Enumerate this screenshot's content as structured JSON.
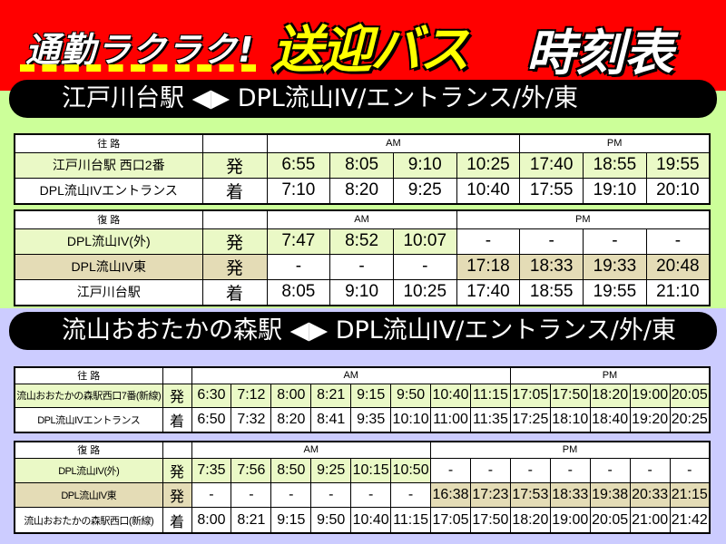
{
  "header": {
    "slogan": "通勤ラクラク!",
    "title_yellow": "送迎バス",
    "title_white": "時刻表"
  },
  "colors": {
    "header": "#ff0000",
    "section1_bg": "#ccff99",
    "section2_bg": "#ccccff",
    "highlight_green": "#eaf9c6",
    "highlight_tan": "#e4dcb6"
  },
  "route1": {
    "banner": "江戸川台駅 ◀▶ DPL流山IV/エントランス/外/東",
    "outbound": {
      "label": "往 路",
      "am": "AM",
      "pm": "PM",
      "rows": [
        {
          "stop": "江戸川台駅 西口2番",
          "dir": "発",
          "times": [
            "6:55",
            "8:05",
            "9:10",
            "10:25",
            "17:40",
            "18:55",
            "19:55"
          ]
        },
        {
          "stop": "DPL流山IVエントランス",
          "dir": "着",
          "times": [
            "7:10",
            "8:20",
            "9:25",
            "10:40",
            "17:55",
            "19:10",
            "20:10"
          ]
        }
      ]
    },
    "inbound": {
      "label": "復 路",
      "am": "AM",
      "pm": "PM",
      "rows": [
        {
          "stop": "DPL流山IV(外)",
          "dir": "発",
          "times": [
            "7:47",
            "8:52",
            "10:07",
            "-",
            "-",
            "-",
            "-"
          ]
        },
        {
          "stop": "DPL流山IV東",
          "dir": "発",
          "times": [
            "-",
            "-",
            "-",
            "17:18",
            "18:33",
            "19:33",
            "20:48"
          ]
        },
        {
          "stop": "江戸川台駅",
          "dir": "着",
          "times": [
            "8:05",
            "9:10",
            "10:25",
            "17:40",
            "18:55",
            "19:55",
            "21:10"
          ]
        }
      ]
    }
  },
  "route2": {
    "banner": "流山おおたかの森駅 ◀▶ DPL流山IV/エントランス/外/東",
    "outbound": {
      "label": "往 路",
      "am": "AM",
      "pm": "PM",
      "rows": [
        {
          "stop": "流山おおたかの森駅西口7番(新線)",
          "dir": "発",
          "times": [
            "6:30",
            "7:12",
            "8:00",
            "8:21",
            "9:15",
            "9:50",
            "10:40",
            "11:15",
            "17:05",
            "17:50",
            "18:20",
            "19:00",
            "20:05"
          ]
        },
        {
          "stop": "DPL流山IVエントランス",
          "dir": "着",
          "times": [
            "6:50",
            "7:32",
            "8:20",
            "8:41",
            "9:35",
            "10:10",
            "11:00",
            "11:35",
            "17:25",
            "18:10",
            "18:40",
            "19:20",
            "20:25"
          ]
        }
      ]
    },
    "inbound": {
      "label": "復 路",
      "am": "AM",
      "pm": "PM",
      "rows": [
        {
          "stop": "DPL流山IV(外)",
          "dir": "発",
          "times": [
            "7:35",
            "7:56",
            "8:50",
            "9:25",
            "10:15",
            "10:50",
            "-",
            "-",
            "-",
            "-",
            "-",
            "-",
            "-"
          ]
        },
        {
          "stop": "DPL流山IV東",
          "dir": "発",
          "times": [
            "-",
            "-",
            "-",
            "-",
            "-",
            "-",
            "16:38",
            "17:23",
            "17:53",
            "18:33",
            "19:38",
            "20:33",
            "21:15"
          ]
        },
        {
          "stop": "流山おおたかの森駅西口(新線)",
          "dir": "着",
          "times": [
            "8:00",
            "8:21",
            "9:15",
            "9:50",
            "10:40",
            "11:15",
            "17:05",
            "17:50",
            "18:20",
            "19:00",
            "20:05",
            "21:00",
            "21:42"
          ]
        }
      ]
    }
  }
}
